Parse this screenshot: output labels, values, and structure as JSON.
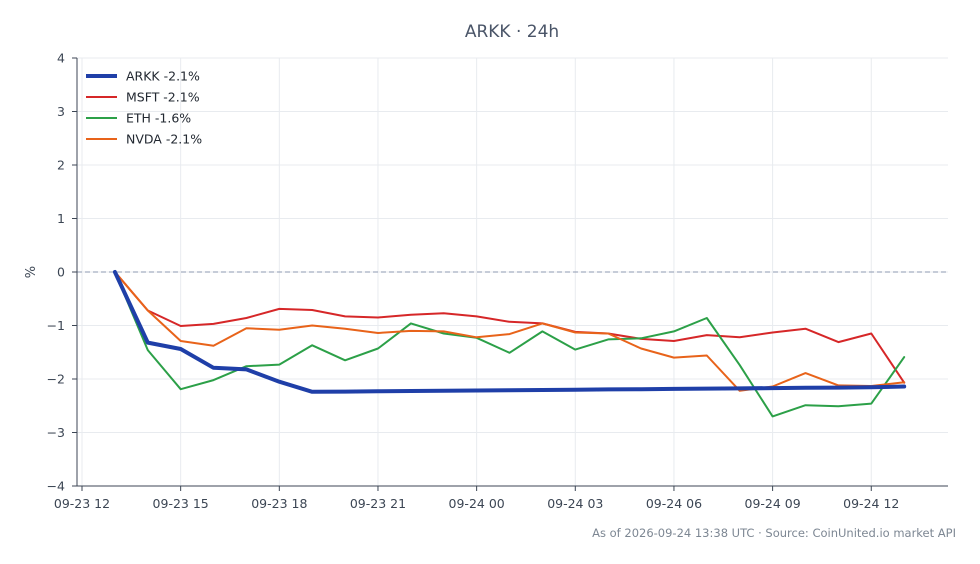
{
  "chart_data": {
    "type": "line",
    "title": "ARKK · 24h",
    "xlabel": "",
    "ylabel": "%",
    "ylim": [
      -4,
      4
    ],
    "yticks": [
      -4,
      -3,
      -2,
      -1,
      0,
      1,
      2,
      3,
      4
    ],
    "xticks": [
      "09-23 12",
      "09-23 15",
      "09-23 18",
      "09-23 21",
      "09-24 00",
      "09-24 03",
      "09-24 06",
      "09-24 09",
      "09-24 12"
    ],
    "x_start": "2026-09-23 12:00",
    "x_end": "2026-09-24 14:20",
    "grid": true,
    "zero_line": true,
    "legend_position": "top-left",
    "x": [
      "2026-09-23 13:00",
      "2026-09-23 14:00",
      "2026-09-23 15:00",
      "2026-09-23 16:00",
      "2026-09-23 17:00",
      "2026-09-23 18:00",
      "2026-09-23 19:00",
      "2026-09-23 20:00",
      "2026-09-23 21:00",
      "2026-09-23 22:00",
      "2026-09-23 23:00",
      "2026-09-24 00:00",
      "2026-09-24 01:00",
      "2026-09-24 02:00",
      "2026-09-24 03:00",
      "2026-09-24 04:00",
      "2026-09-24 05:00",
      "2026-09-24 06:00",
      "2026-09-24 07:00",
      "2026-09-24 08:00",
      "2026-09-24 09:00",
      "2026-09-24 10:00",
      "2026-09-24 11:00",
      "2026-09-24 12:00",
      "2026-09-24 13:00"
    ],
    "series": [
      {
        "name": "ARKK -2.1%",
        "color": "#1f3fa8",
        "width": 4,
        "values": [
          0,
          -1.32,
          -1.44,
          -1.79,
          -1.82,
          -2.05,
          -2.24,
          -2.235,
          -2.23,
          -2.225,
          -2.22,
          -2.215,
          -2.21,
          -2.205,
          -2.2,
          -2.195,
          -2.19,
          -2.185,
          -2.18,
          -2.175,
          -2.17,
          -2.165,
          -2.16,
          -2.155,
          -2.14
        ]
      },
      {
        "name": "MSFT -2.1%",
        "color": "#d62728",
        "width": 2,
        "values": [
          0,
          -0.72,
          -1.01,
          -0.97,
          -0.86,
          -0.69,
          -0.71,
          -0.83,
          -0.85,
          -0.8,
          -0.77,
          -0.83,
          -0.93,
          -0.96,
          -1.12,
          -1.15,
          -1.25,
          -1.29,
          -1.18,
          -1.22,
          -1.13,
          -1.06,
          -1.31,
          -1.15,
          -2.07
        ]
      },
      {
        "name": "ETH -1.6%",
        "color": "#2ca048",
        "width": 2,
        "values": [
          0,
          -1.46,
          -2.19,
          -2.02,
          -1.76,
          -1.73,
          -1.37,
          -1.65,
          -1.43,
          -0.96,
          -1.15,
          -1.23,
          -1.51,
          -1.11,
          -1.45,
          -1.26,
          -1.24,
          -1.11,
          -0.86,
          -1.74,
          -2.7,
          -2.49,
          -2.51,
          -2.46,
          -1.59
        ]
      },
      {
        "name": "NVDA -2.1%",
        "color": "#e8631a",
        "width": 2,
        "values": [
          0,
          -0.72,
          -1.29,
          -1.38,
          -1.05,
          -1.08,
          -1.0,
          -1.06,
          -1.14,
          -1.1,
          -1.11,
          -1.22,
          -1.16,
          -0.96,
          -1.13,
          -1.15,
          -1.43,
          -1.6,
          -1.56,
          -2.22,
          -2.14,
          -1.89,
          -2.12,
          -2.13,
          -2.06
        ]
      }
    ]
  },
  "footer": "As of 2026-09-24 13:38 UTC · Source: CoinUnited.io market API"
}
